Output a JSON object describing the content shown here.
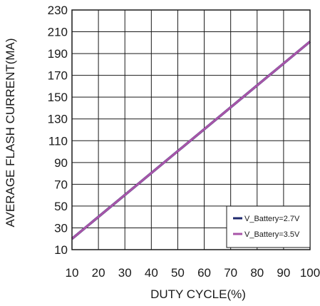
{
  "chart_data": {
    "type": "line",
    "title": "",
    "xlabel": "DUTY CYCLE(%)",
    "ylabel": "AVERAGE FLASH CURRENT(MA)",
    "xlim": [
      10,
      100
    ],
    "ylim": [
      10,
      230
    ],
    "xticks": [
      10,
      20,
      30,
      40,
      50,
      60,
      70,
      80,
      90,
      100
    ],
    "yticks": [
      10,
      30,
      50,
      70,
      90,
      110,
      130,
      150,
      170,
      190,
      210,
      230
    ],
    "grid": true,
    "legend_position": "bottom-right",
    "series": [
      {
        "name": "V_Battery=2.7V",
        "color": "#1f2a6e",
        "x": [
          10,
          100
        ],
        "y": [
          20,
          201
        ]
      },
      {
        "name": "V_Battery=3.5V",
        "color": "#a855a8",
        "x": [
          10,
          100
        ],
        "y": [
          20,
          201
        ]
      }
    ]
  }
}
